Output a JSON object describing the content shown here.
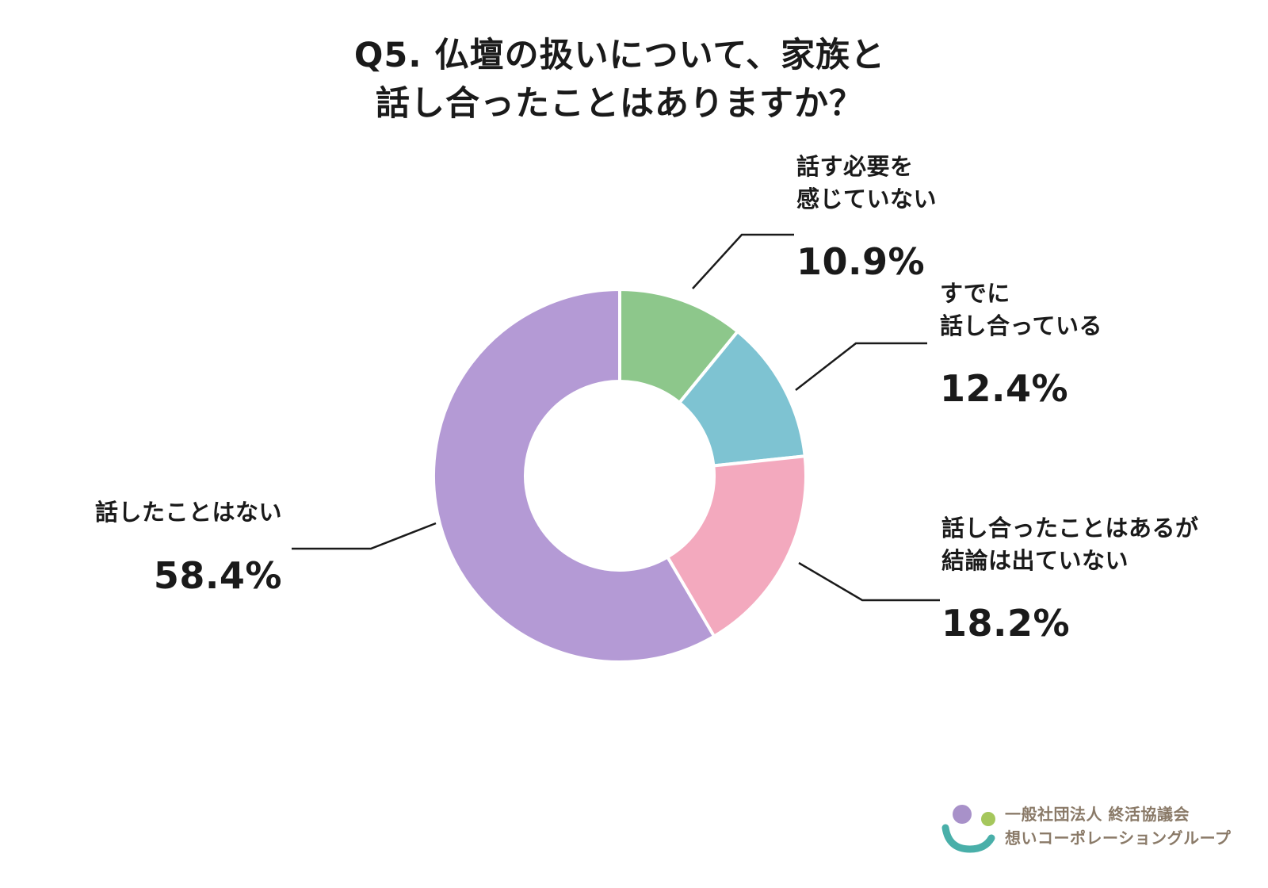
{
  "title": {
    "line1": "Q5. 仏壇の扱いについて、家族と",
    "line2": "話し合ったことはありますか？"
  },
  "chart_data": {
    "type": "pie",
    "subtype": "donut",
    "title": "Q5. 仏壇の扱いについて、家族と話し合ったことはありますか？",
    "direction": "clockwise",
    "start_angle_deg": 0,
    "legend_position": "none",
    "gap_color": "#ffffff",
    "segments": [
      {
        "label": "話す必要を感じていない",
        "label_lines": [
          "話す必要を",
          "感じていない"
        ],
        "value": 10.9,
        "display": "10.9%",
        "color": "#8DC78B"
      },
      {
        "label": "すでに話し合っている",
        "label_lines": [
          "すでに",
          "話し合っている"
        ],
        "value": 12.4,
        "display": "12.4%",
        "color": "#7EC3D2"
      },
      {
        "label": "話し合ったことはあるが結論は出ていない",
        "label_lines": [
          "話し合ったことはあるが",
          "結論は出ていない"
        ],
        "value": 18.2,
        "display": "18.2%",
        "color": "#F3A9BE"
      },
      {
        "label": "話したことはない",
        "label_lines": [
          "話したことはない"
        ],
        "value": 58.4,
        "display": "58.4%",
        "color": "#B49AD5"
      }
    ]
  },
  "footer": {
    "org_line1": "一般社団法人 終活協議会",
    "org_line2": "想いコーポレーショングループ",
    "logo_colors": {
      "purple": "#A891C9",
      "green": "#A5C75C",
      "teal": "#49AFA9"
    }
  }
}
